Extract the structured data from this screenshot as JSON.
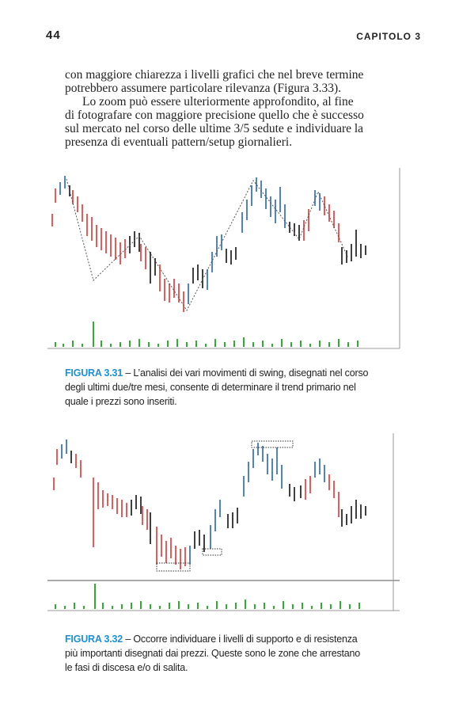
{
  "header": {
    "page_number": "44",
    "chapter": "CAPITOLO 3"
  },
  "body": {
    "lines": [
      "con maggiore chiarezza i livelli grafici che nel breve termine",
      "potrebbero assumere particolare rilevanza (Figura 3.33).",
      "Lo zoom può essere ulteriormente approfondito, al fine",
      "di fotografare con maggiore precisione quello che è successo",
      "sul mercato nel corso delle ultime 3/5 sedute e individuare la",
      "presenza di eventuali pattern/setup giornalieri."
    ]
  },
  "figures": [
    {
      "label": "FIGURA 3.31",
      "caption_lines": [
        "– L’analisi dei vari movimenti di swing, disegnati nel corso",
        "degli ultimi due/tre mesi, consente di determinare il trend primario nel",
        "quale i prezzi sono inseriti."
      ]
    },
    {
      "label": "FIGURA 3.32",
      "caption_lines": [
        "– Occorre individuare i livelli di supporto e di resistenza",
        "più importanti disegnati dai prezzi. Queste sono le zone che arrestano",
        "le fasi di discesa e/o di salita."
      ]
    }
  ]
}
